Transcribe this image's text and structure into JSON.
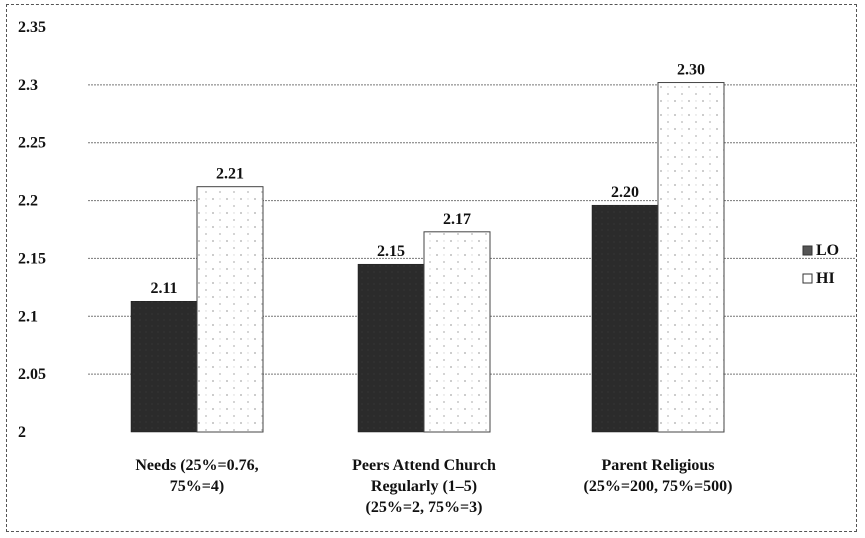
{
  "chart_data": {
    "type": "bar",
    "categories": [
      [
        "Needs (25%=0.76,",
        "75%=4)"
      ],
      [
        "Peers Attend Church",
        "Regularly (1–5)",
        "(25%=2, 75%=3)"
      ],
      [
        "Parent Religious",
        "(25%=200, 75%=500)"
      ]
    ],
    "series": [
      {
        "name": "LO",
        "values": [
          2.11,
          2.15,
          2.2
        ],
        "labels": [
          "2.11",
          "2.15",
          "2.20"
        ],
        "color": "#2b2b2b"
      },
      {
        "name": "HI",
        "values": [
          2.21,
          2.17,
          2.3
        ],
        "labels": [
          "2.21",
          "2.17",
          "2.30"
        ],
        "color": "#ffffff"
      }
    ],
    "true_values": [
      [
        2.113,
        2.145,
        2.196
      ],
      [
        2.212,
        2.173,
        2.302
      ]
    ],
    "ylim": [
      2,
      2.35
    ],
    "yticks": [
      "2",
      "2.05",
      "2.1",
      "2.15",
      "2.2",
      "2.25",
      "2.3",
      "2.35"
    ],
    "grid": true,
    "legend_position": "right"
  }
}
